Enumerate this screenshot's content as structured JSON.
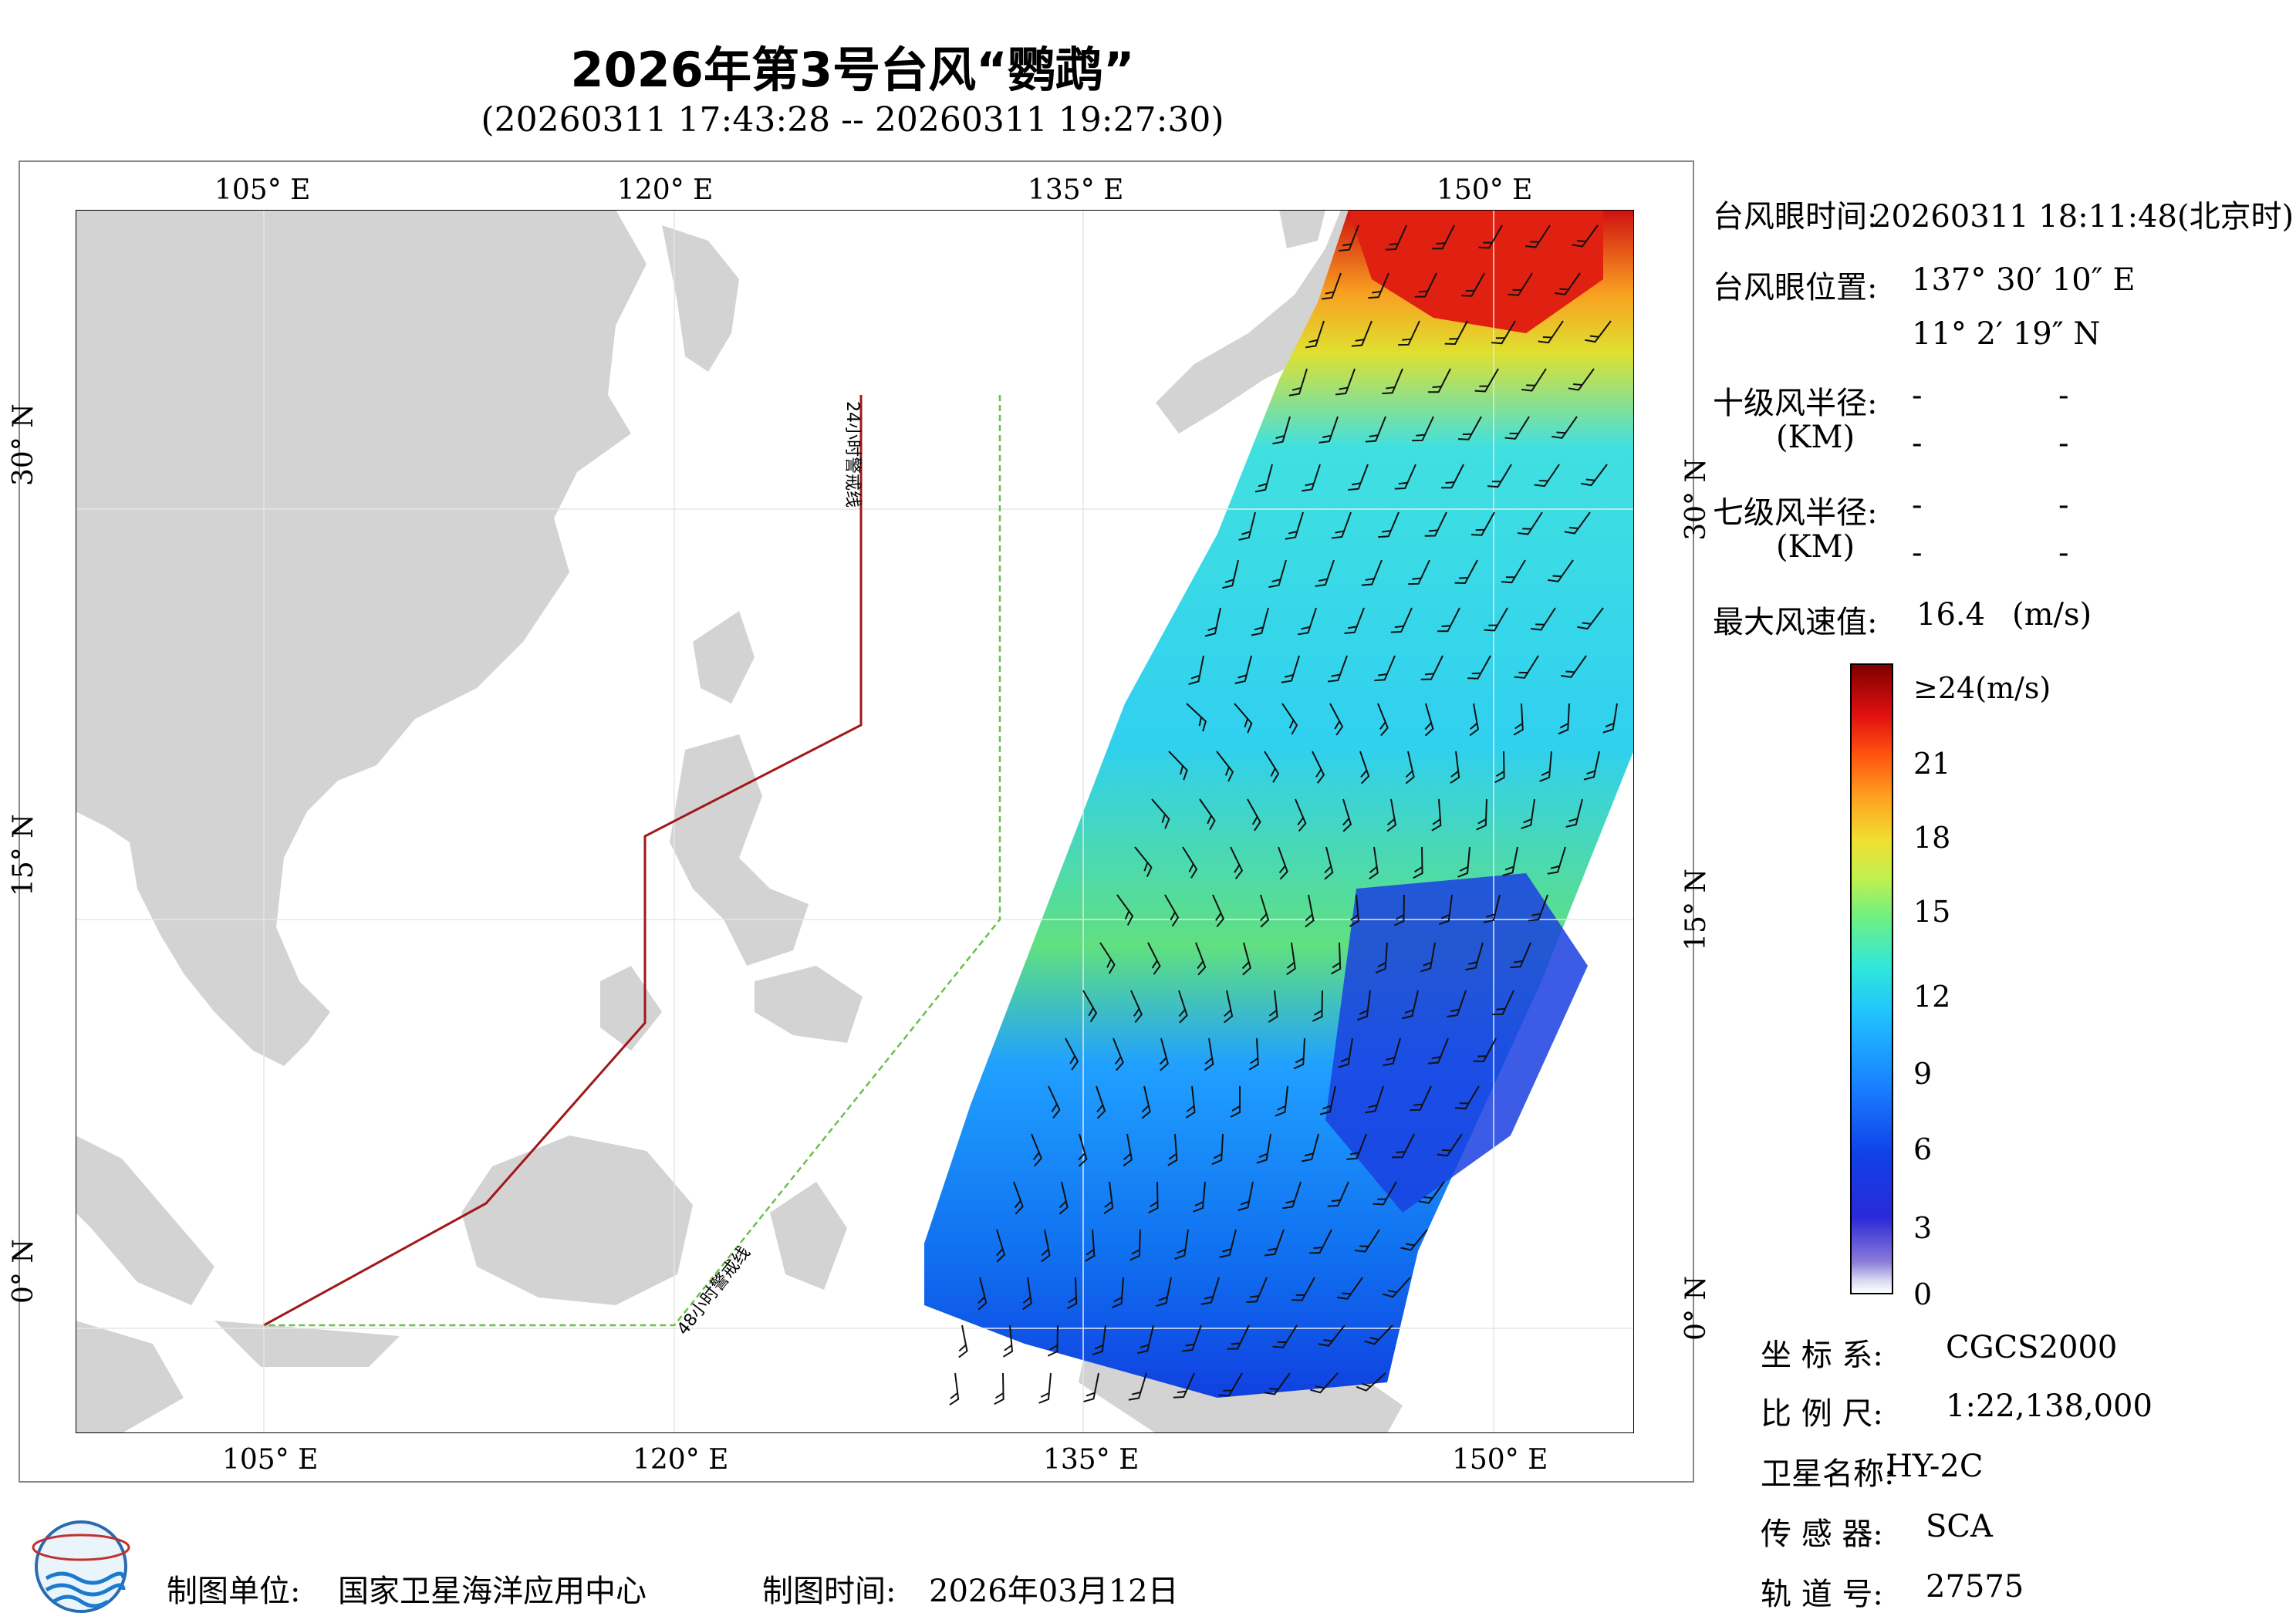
{
  "title": "2026年第3号台风“鹦鹉”",
  "subtitle": "(20260311 17:43:28 -- 20260311 19:27:30)",
  "map": {
    "lon_labels": [
      "105° E",
      "120° E",
      "135° E",
      "150° E"
    ],
    "lat_labels": [
      "30° N",
      "15° N",
      "0° N"
    ],
    "warning_line_24h": "24小时警戒线",
    "warning_line_48h": "48小时警戒线"
  },
  "info": {
    "eye_time_label": "台风眼时间:",
    "eye_time_value": "20260311 18:11:48(北京时)",
    "eye_pos_label": "台风眼位置:",
    "eye_lon": "137° 30′ 10″ E",
    "eye_lat": "11° 2′ 19″ N",
    "r10_label": "十级风半径:",
    "r7_label": "七级风半径:",
    "unit_km": "(KM)",
    "dash": "-",
    "max_wind_label": "最大风速值:",
    "max_wind_value": "16.4",
    "max_wind_unit": "(m/s)"
  },
  "colorbar": {
    "labels": [
      "≥24(m/s)",
      "21",
      "18",
      "15",
      "12",
      "9",
      "6",
      "3",
      "0"
    ],
    "colors": [
      "#ffffff",
      "#2a2ad8",
      "#1a80ff",
      "#20c0ff",
      "#70f080",
      "#f0e030",
      "#ffa020",
      "#e01010",
      "#800000"
    ]
  },
  "meta": {
    "crs_label": "坐 标 系:",
    "crs_value": "CGCS2000",
    "scale_label": "比 例 尺:",
    "scale_value": "1:22,138,000",
    "satellite_label": "卫星名称:",
    "satellite_value": "HY-2C",
    "sensor_label": "传 感 器:",
    "sensor_value": "SCA",
    "orbit_label": "轨 道 号:",
    "orbit_value": "27575"
  },
  "footer": {
    "unit_label": "制图单位:",
    "unit_value": "国家卫星海洋应用中心",
    "time_label": "制图时间:",
    "time_value": "2026年03月12日"
  }
}
